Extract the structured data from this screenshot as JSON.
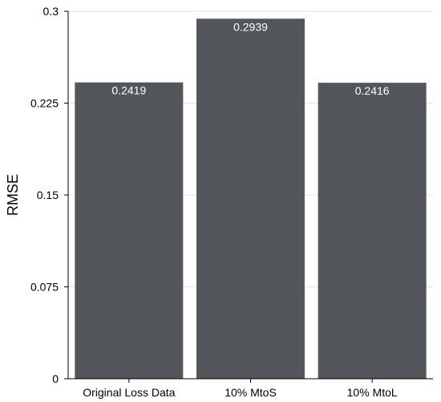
{
  "chart_data": {
    "type": "bar",
    "categories": [
      "Original Loss Data",
      "10% MtoS",
      "10% MtoL"
    ],
    "values": [
      0.2419,
      0.2939,
      0.2416
    ],
    "data_labels": [
      "0.2419",
      "0.2939",
      "0.2416"
    ],
    "ylabel": "RMSE",
    "ylim": [
      0,
      0.3
    ],
    "yticks": [
      0,
      0.075,
      0.15,
      0.225,
      0.3
    ],
    "ytick_labels": [
      "0",
      "0.075",
      "0.15",
      "0.225",
      "0.3"
    ],
    "grid": true,
    "bar_color": "#53565a",
    "data_label_color": "#ffffff",
    "grid_color": "#e2e2e2"
  }
}
